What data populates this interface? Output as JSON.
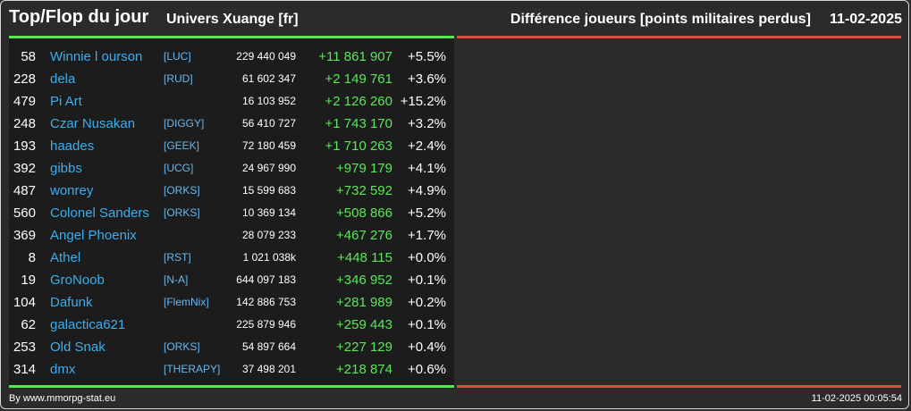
{
  "header": {
    "title": "Top/Flop du jour",
    "universe": "Univers Xuange [fr]",
    "metric": "Différence joueurs [points militaires perdus]",
    "date": "11-02-2025"
  },
  "colors": {
    "background": "#2b2b2b",
    "top_accent": "#55e855",
    "flop_accent": "#e34b42",
    "player_link": "#3aaef0",
    "gain": "#58e858"
  },
  "top_rows": [
    {
      "rank": "58",
      "name": "Winnie l ourson",
      "alliance": "[LUC]",
      "points": "229 440 049",
      "diff": "+11 861 907",
      "pct": "+5.5%"
    },
    {
      "rank": "228",
      "name": "dela",
      "alliance": "[RUD]",
      "points": "61 602 347",
      "diff": "+2 149 761",
      "pct": "+3.6%"
    },
    {
      "rank": "479",
      "name": "Pi Art",
      "alliance": "",
      "points": "16 103 952",
      "diff": "+2 126 260",
      "pct": "+15.2%"
    },
    {
      "rank": "248",
      "name": "Czar Nusakan",
      "alliance": "[DIGGY]",
      "points": "56 410 727",
      "diff": "+1 743 170",
      "pct": "+3.2%"
    },
    {
      "rank": "193",
      "name": "haades",
      "alliance": "[GEEK]",
      "points": "72 180 459",
      "diff": "+1 710 263",
      "pct": "+2.4%"
    },
    {
      "rank": "392",
      "name": "gibbs",
      "alliance": "[UCG]",
      "points": "24 967 990",
      "diff": "+979 179",
      "pct": "+4.1%"
    },
    {
      "rank": "487",
      "name": "wonrey",
      "alliance": "[ORKS]",
      "points": "15 599 683",
      "diff": "+732 592",
      "pct": "+4.9%"
    },
    {
      "rank": "560",
      "name": "Colonel Sanders",
      "alliance": "[ORKS]",
      "points": "10 369 134",
      "diff": "+508 866",
      "pct": "+5.2%"
    },
    {
      "rank": "369",
      "name": "Angel Phoenix",
      "alliance": "",
      "points": "28 079 233",
      "diff": "+467 276",
      "pct": "+1.7%"
    },
    {
      "rank": "8",
      "name": "Athel",
      "alliance": "[RST]",
      "points": "1 021 038k",
      "diff": "+448 115",
      "pct": "+0.0%"
    },
    {
      "rank": "19",
      "name": "GroNoob",
      "alliance": "[N-A]",
      "points": "644 097 183",
      "diff": "+346 952",
      "pct": "+0.1%"
    },
    {
      "rank": "104",
      "name": "Dafunk",
      "alliance": "[FlemNix]",
      "points": "142 886 753",
      "diff": "+281 989",
      "pct": "+0.2%"
    },
    {
      "rank": "62",
      "name": "galactica621",
      "alliance": "",
      "points": "225 879 946",
      "diff": "+259 443",
      "pct": "+0.1%"
    },
    {
      "rank": "253",
      "name": "Old Snak",
      "alliance": "[ORKS]",
      "points": "54 897 664",
      "diff": "+227 129",
      "pct": "+0.4%"
    },
    {
      "rank": "314",
      "name": "dmx",
      "alliance": "[THERAPY]",
      "points": "37 498 201",
      "diff": "+218 874",
      "pct": "+0.6%"
    }
  ],
  "footer": {
    "credit": "By www.mmorpg-stat.eu",
    "timestamp": "11-02-2025 00:05:54"
  }
}
